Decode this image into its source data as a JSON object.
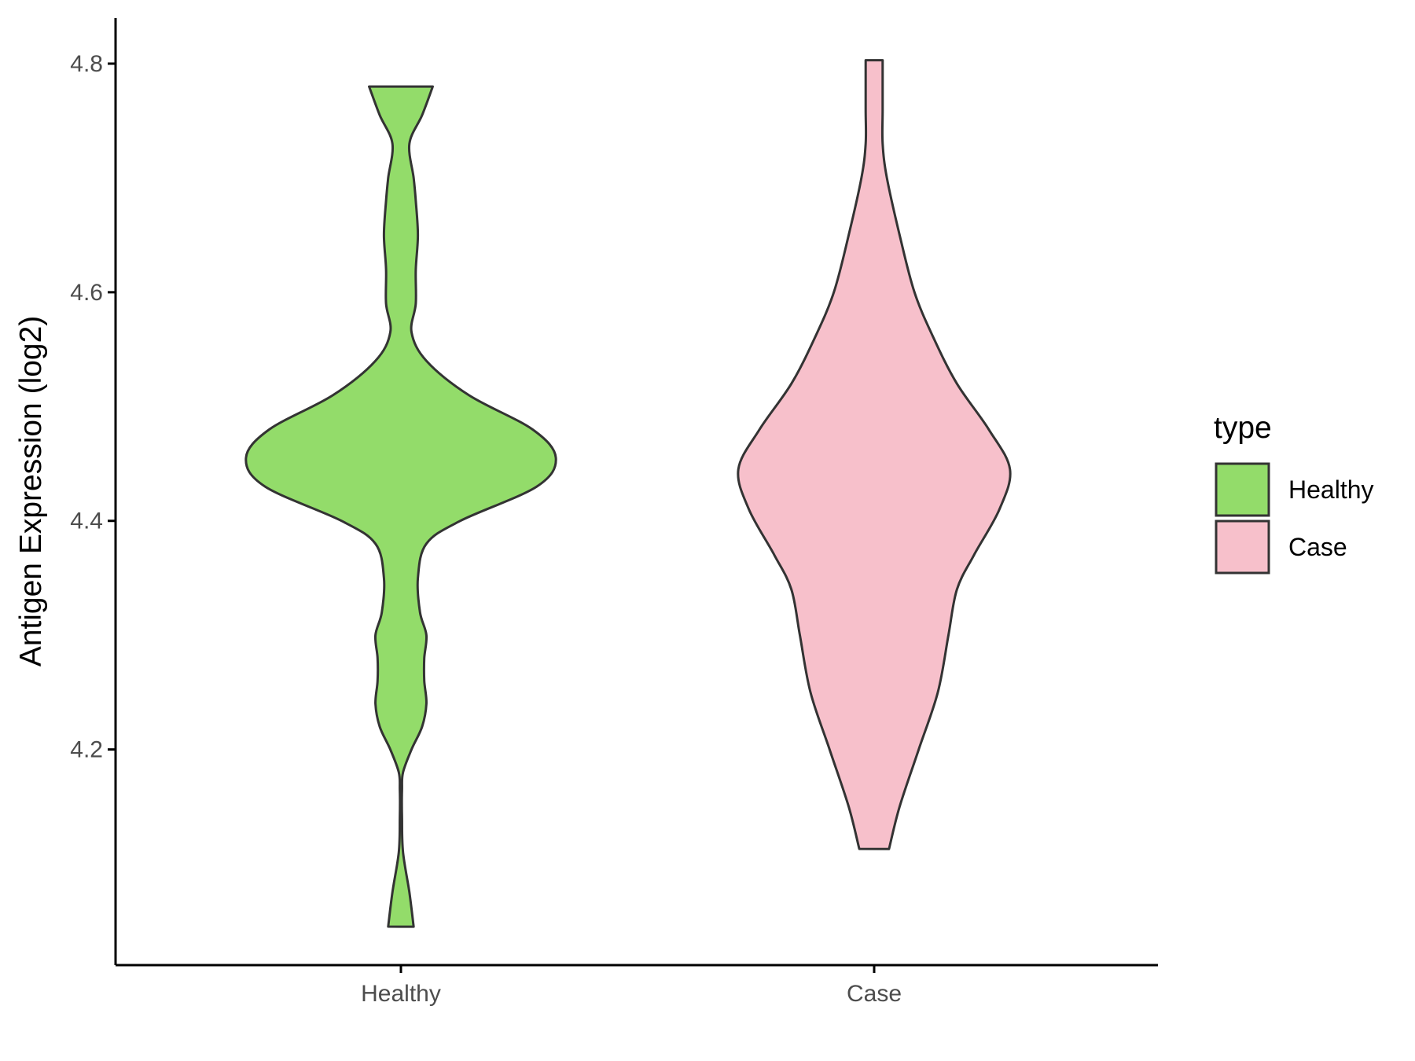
{
  "chart_data": {
    "type": "violin",
    "title": "",
    "xlabel": "",
    "ylabel": "Antigen Expression (log2)",
    "categories": [
      "Healthy",
      "Case"
    ],
    "yticks": [
      "4.2",
      "4.4",
      "4.6",
      "4.8"
    ],
    "ytick_values": [
      4.2,
      4.4,
      4.6,
      4.8
    ],
    "ylim": [
      4.01,
      4.84
    ],
    "grid": false,
    "legend": {
      "title": "type",
      "position": "right",
      "entries": [
        {
          "label": "Healthy",
          "color": "#93DC6A"
        },
        {
          "label": "Case",
          "color": "#F7C0CB"
        }
      ]
    },
    "series": [
      {
        "category": "Healthy",
        "color": "#93DC6A",
        "y_min": 4.045,
        "y_max": 4.78,
        "density_profile": [
          [
            4.045,
            0.06
          ],
          [
            4.075,
            0.04
          ],
          [
            4.11,
            0.01
          ],
          [
            4.14,
            0.005
          ],
          [
            4.165,
            0.005
          ],
          [
            4.18,
            0.01
          ],
          [
            4.2,
            0.05
          ],
          [
            4.22,
            0.1
          ],
          [
            4.24,
            0.12
          ],
          [
            4.26,
            0.11
          ],
          [
            4.28,
            0.11
          ],
          [
            4.3,
            0.12
          ],
          [
            4.32,
            0.09
          ],
          [
            4.35,
            0.08
          ],
          [
            4.38,
            0.12
          ],
          [
            4.4,
            0.28
          ],
          [
            4.43,
            0.64
          ],
          [
            4.455,
            0.73
          ],
          [
            4.48,
            0.62
          ],
          [
            4.51,
            0.32
          ],
          [
            4.54,
            0.12
          ],
          [
            4.565,
            0.05
          ],
          [
            4.59,
            0.07
          ],
          [
            4.62,
            0.07
          ],
          [
            4.65,
            0.08
          ],
          [
            4.68,
            0.07
          ],
          [
            4.7,
            0.06
          ],
          [
            4.73,
            0.04
          ],
          [
            4.755,
            0.1
          ],
          [
            4.78,
            0.15
          ]
        ]
      },
      {
        "category": "Case",
        "color": "#F7C0CB",
        "y_min": 4.113,
        "y_max": 4.803,
        "density_profile": [
          [
            4.113,
            0.07
          ],
          [
            4.15,
            0.12
          ],
          [
            4.2,
            0.21
          ],
          [
            4.25,
            0.3
          ],
          [
            4.3,
            0.35
          ],
          [
            4.34,
            0.39
          ],
          [
            4.37,
            0.47
          ],
          [
            4.41,
            0.59
          ],
          [
            4.445,
            0.64
          ],
          [
            4.48,
            0.54
          ],
          [
            4.52,
            0.39
          ],
          [
            4.56,
            0.28
          ],
          [
            4.6,
            0.19
          ],
          [
            4.65,
            0.12
          ],
          [
            4.7,
            0.06
          ],
          [
            4.73,
            0.04
          ],
          [
            4.76,
            0.04
          ],
          [
            4.803,
            0.04
          ]
        ]
      }
    ]
  }
}
